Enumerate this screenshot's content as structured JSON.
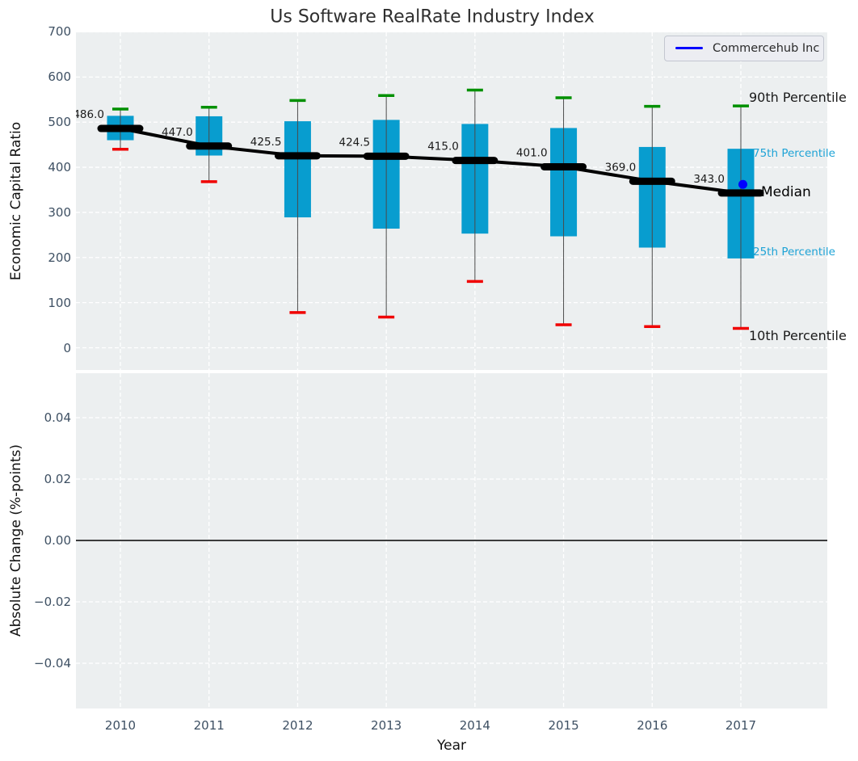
{
  "title": "Us Software RealRate Industry Index",
  "legend": {
    "label": "Commercehub Inc",
    "line_color": "#0000ff"
  },
  "axes": {
    "top_ylabel": "Economic Capital Ratio",
    "bottom_ylabel": "Absolute Change (%-points)",
    "xlabel": "Year"
  },
  "percentile_labels": {
    "p90": "90th Percentile",
    "p75": "75th Percentile",
    "median": "Median",
    "p25": "25th Percentile",
    "p10": "10th Percentile"
  },
  "colors": {
    "box_fill": "#089dcf",
    "whisker": "#4a4a4a",
    "cap_high": "#009000",
    "cap_low": "#f00000",
    "median_line": "#000000",
    "company": "#0000ff",
    "plot_bg": "#eceff0",
    "grid": "#ffffff",
    "tick": "#3e5063"
  },
  "chart_data": [
    {
      "type": "boxplot",
      "title": "Us Software RealRate Industry Index",
      "xlabel": "Year",
      "ylabel": "Economic Capital Ratio",
      "ylim": [
        -50,
        700
      ],
      "yticks": [
        0,
        100,
        200,
        300,
        400,
        500,
        600,
        700
      ],
      "grid": true,
      "legend_position": "upper right",
      "categories": [
        "2010",
        "2011",
        "2012",
        "2013",
        "2014",
        "2015",
        "2016",
        "2017"
      ],
      "series": [
        {
          "key": "p90",
          "name": "90th Percentile",
          "values": [
            529,
            533,
            548,
            559,
            571,
            554,
            535,
            536
          ]
        },
        {
          "key": "p75",
          "name": "75th Percentile",
          "values": [
            514,
            513,
            502,
            505,
            496,
            487,
            445,
            441
          ]
        },
        {
          "key": "median",
          "name": "Median",
          "values": [
            486,
            447,
            425.5,
            424.5,
            415,
            401,
            369,
            343
          ]
        },
        {
          "key": "p25",
          "name": "25th Percentile",
          "values": [
            460,
            426,
            289,
            264,
            253,
            247,
            222,
            198
          ]
        },
        {
          "key": "p10",
          "name": "10th Percentile",
          "values": [
            440,
            368,
            78,
            68,
            147,
            51,
            47,
            43
          ]
        }
      ],
      "median_point_labels": [
        "486.0",
        "447.0",
        "425.5",
        "424.5",
        "415.0",
        "401.0",
        "369.0",
        "343.0"
      ],
      "company_series": {
        "name": "Commercehub Inc",
        "points": [
          {
            "x": "2017",
            "y": 362
          }
        ]
      }
    },
    {
      "type": "line",
      "ylabel": "Absolute Change (%-points)",
      "ylim": [
        -0.055,
        0.055
      ],
      "ytick_values": [
        0.04,
        0.02,
        0,
        -0.02,
        -0.04
      ],
      "ytick_labels": [
        "0.04",
        "0.02",
        "0.00",
        "−0.02",
        "−0.04"
      ],
      "zero_line": 0,
      "grid": true,
      "categories": [
        "2010",
        "2011",
        "2012",
        "2013",
        "2014",
        "2015",
        "2016",
        "2017"
      ],
      "series": []
    }
  ]
}
